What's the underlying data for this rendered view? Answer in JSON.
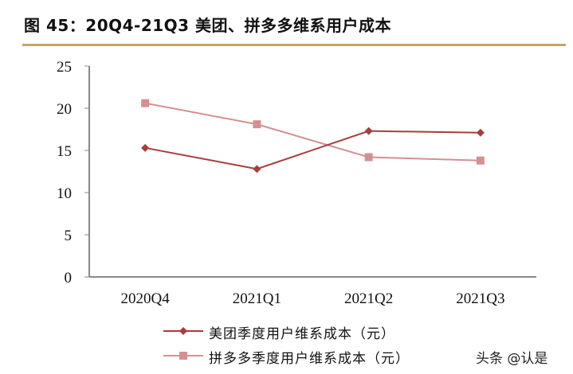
{
  "figure": {
    "title": "图 45：20Q4-21Q3 美团、拼多多维系用户成本",
    "watermark": "头条 @认是"
  },
  "colors": {
    "meituan": "#a83c3f",
    "pdd": "#d49092",
    "axis": "#888888",
    "title_rule": "#c4a469"
  },
  "chart_data": {
    "type": "line",
    "title": "20Q4-21Q3 美团、拼多多维系用户成本",
    "xlabel": "",
    "ylabel": "",
    "categories": [
      "2020Q4",
      "2021Q1",
      "2021Q2",
      "2021Q3"
    ],
    "series": [
      {
        "name": "美团季度用户维系成本（元）",
        "marker": "diamond",
        "values": [
          15.3,
          12.8,
          17.3,
          17.1
        ]
      },
      {
        "name": "拼多多季度用户维系成本（元）",
        "marker": "square",
        "values": [
          20.6,
          18.1,
          14.2,
          13.8
        ]
      }
    ],
    "ylim": [
      0,
      25
    ],
    "yticks": [
      0,
      5,
      10,
      15,
      20,
      25
    ],
    "grid": false,
    "legend_position": "bottom"
  }
}
